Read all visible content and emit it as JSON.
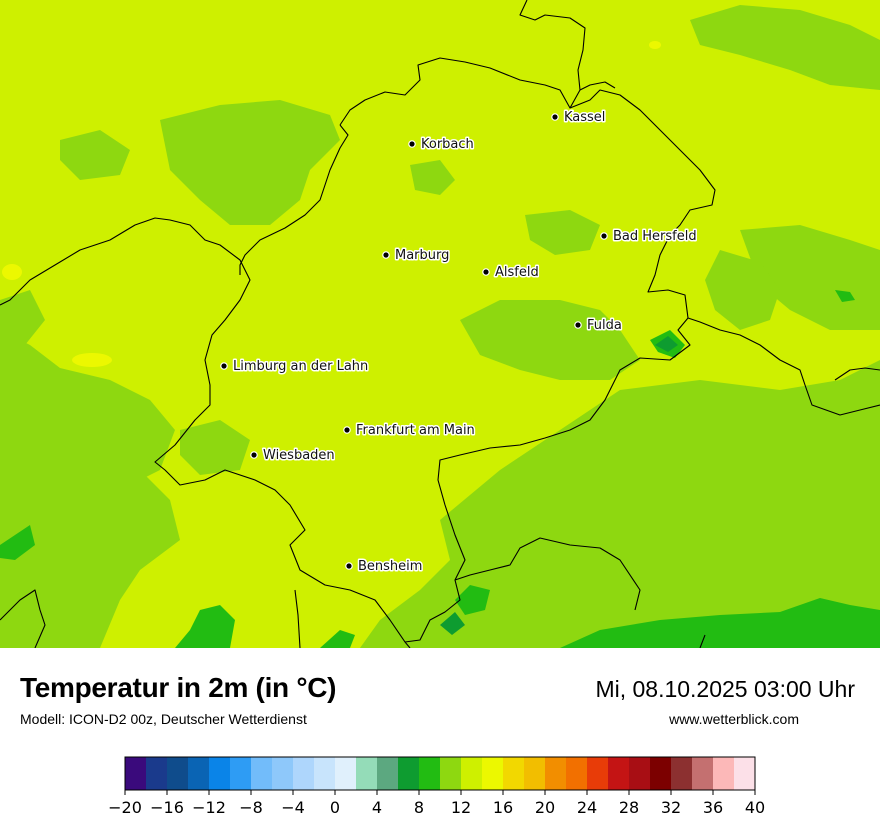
{
  "header": {
    "title": "Temperatur in 2m (in °C)",
    "subtitle": "Modell: ICON-D2 00z, Deutscher Wetterdienst",
    "datetime": "Mi, 08.10.2025 03:00 Uhr",
    "website": "www.wetterblick.com"
  },
  "map": {
    "cities": [
      {
        "name": "Kassel"
      },
      {
        "name": "Korbach"
      },
      {
        "name": "Bad Hersfeld"
      },
      {
        "name": "Marburg"
      },
      {
        "name": "Alsfeld"
      },
      {
        "name": "Fulda"
      },
      {
        "name": "Limburg an der Lahn"
      },
      {
        "name": "Frankfurt am Main"
      },
      {
        "name": "Wiesbaden"
      },
      {
        "name": "Bensheim"
      }
    ]
  },
  "legend": {
    "unit": "°C",
    "min": -20,
    "max": 40,
    "step": 2,
    "tick_labels": [
      "−20",
      "−16",
      "−12",
      "−8",
      "−4",
      "0",
      "4",
      "8",
      "12",
      "16",
      "20",
      "24",
      "28",
      "32",
      "36",
      "40"
    ],
    "colors": [
      "#3a0a7c",
      "#1a3a8c",
      "#0f4c8c",
      "#0a64b4",
      "#0a84e8",
      "#2e9cf4",
      "#72bcfa",
      "#8ec8fa",
      "#aed6fc",
      "#c8e4fc",
      "#e0f0fc",
      "#94dcb8",
      "#5ca880",
      "#0e9c30",
      "#22bc12",
      "#8ed810",
      "#cef000",
      "#ecf800",
      "#f2d800",
      "#f2be00",
      "#f28e00",
      "#f27000",
      "#e83c08",
      "#c41414",
      "#a80e14",
      "#7c0000",
      "#8c3030",
      "#c47070",
      "#fcb8b8",
      "#fce0e8"
    ]
  },
  "map_colors": {
    "t12": "#cef000",
    "t10": "#8ed810",
    "t8": "#22bc12",
    "t6": "#0e9c30",
    "t16": "#ecf800"
  }
}
